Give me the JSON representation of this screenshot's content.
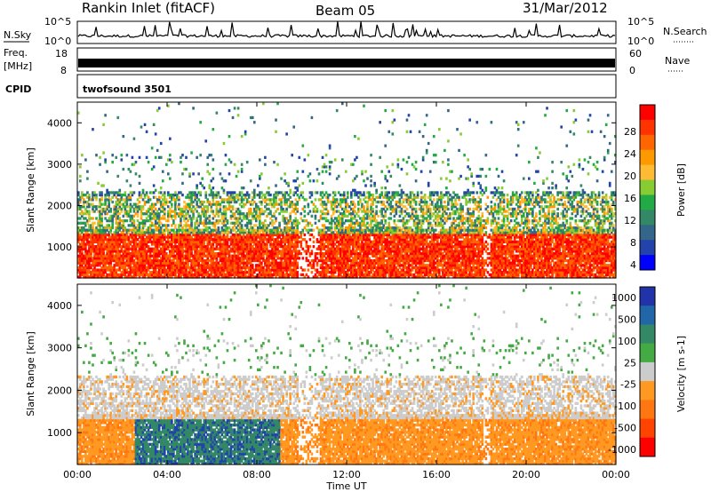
{
  "header": {
    "title": "Rankin Inlet (fitACF)",
    "beam": "Beam 05",
    "date": "31/Mar/2012"
  },
  "top_panels": {
    "nsky_label": "N.Sky",
    "nsky_ticks": [
      "10^5",
      "10^0"
    ],
    "nsearch_label": "N.Search",
    "nsearch_ticks": [
      "10^5",
      "10^0"
    ],
    "freq_label": "Freq.",
    "freq_unit": "[MHz]",
    "freq_ticks": [
      "18",
      "8"
    ],
    "nave_label": "Nave",
    "nave_ticks": [
      "60",
      "0"
    ],
    "cpid_label": "CPID",
    "cpid_value": "twofsound 3501"
  },
  "chart_data": [
    {
      "type": "heatmap",
      "name": "power",
      "ylabel": "Slant Range [km]",
      "yticks": [
        "1000",
        "2000",
        "3000",
        "4000"
      ],
      "ylim": [
        250,
        4500
      ],
      "xlim": [
        0,
        24
      ],
      "colorbar": {
        "label": "Power [dB]",
        "ticks": [
          "28",
          "24",
          "20",
          "16",
          "12",
          "8",
          "4"
        ],
        "colors": [
          "#ff0000",
          "#ff3300",
          "#ff6600",
          "#ff9900",
          "#ffbb33",
          "#88cc33",
          "#22aa44",
          "#338866",
          "#336688",
          "#2244aa",
          "#0000ff"
        ]
      }
    },
    {
      "type": "heatmap",
      "name": "velocity",
      "ylabel": "Slant Range [km]",
      "yticks": [
        "1000",
        "2000",
        "3000",
        "4000"
      ],
      "ylim": [
        250,
        4500
      ],
      "xlim": [
        0,
        24
      ],
      "xlabel": "Time UT",
      "xticks": [
        "00:00",
        "04:00",
        "08:00",
        "12:00",
        "16:00",
        "20:00",
        "00:00"
      ],
      "colorbar": {
        "label": "Velocity [m s-1]",
        "ticks": [
          "1000",
          "500",
          "100",
          "25",
          "-25",
          "-100",
          "-500",
          "-1000"
        ],
        "colors": [
          "#2233aa",
          "#2266aa",
          "#338866",
          "#44aa44",
          "#cccccc",
          "#ff9922",
          "#ff7711",
          "#ff4400",
          "#ff0000"
        ]
      }
    }
  ]
}
